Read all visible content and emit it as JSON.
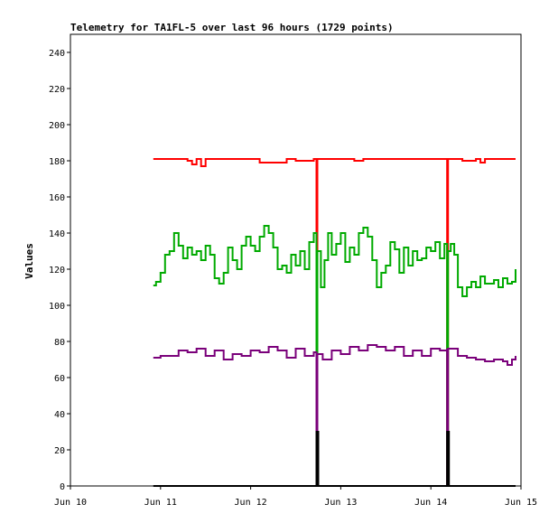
{
  "chart_data": {
    "type": "line",
    "title": "Telemetry for TA1FL-5 over last 96 hours (1729 points)",
    "xlabel": "",
    "ylabel": "Values",
    "x_ticks": [
      "Jun 10",
      "Jun 11",
      "Jun 12",
      "Jun 13",
      "Jun 14",
      "Jun 15"
    ],
    "xlim": [
      0,
      5
    ],
    "ylim": [
      0,
      250
    ],
    "y_ticks": [
      0,
      20,
      40,
      60,
      80,
      100,
      120,
      140,
      160,
      180,
      200,
      220,
      240
    ],
    "grid": false,
    "series": [
      {
        "color": "#ff0000",
        "x": [
          0.92,
          1.2,
          1.3,
          1.35,
          1.4,
          1.45,
          1.5,
          1.55,
          2.05,
          2.1,
          2.4,
          2.5,
          2.7,
          2.73,
          2.73,
          2.74,
          2.74,
          2.9,
          3.1,
          3.15,
          3.25,
          3.5,
          4.18,
          4.18,
          4.19,
          4.19,
          4.3,
          4.35,
          4.5,
          4.55,
          4.6,
          4.94
        ],
        "values": [
          181,
          181,
          180,
          178,
          181,
          177,
          181,
          181,
          181,
          179,
          181,
          180,
          181,
          181,
          0,
          0,
          181,
          181,
          181,
          180,
          181,
          181,
          181,
          0,
          0,
          181,
          181,
          180,
          181,
          179,
          181,
          181
        ]
      },
      {
        "color": "#00aa00",
        "x": [
          0.92,
          0.95,
          1.0,
          1.05,
          1.1,
          1.15,
          1.2,
          1.25,
          1.3,
          1.35,
          1.4,
          1.45,
          1.5,
          1.55,
          1.6,
          1.65,
          1.7,
          1.75,
          1.8,
          1.85,
          1.9,
          1.95,
          2.0,
          2.05,
          2.1,
          2.15,
          2.2,
          2.25,
          2.3,
          2.35,
          2.4,
          2.45,
          2.5,
          2.55,
          2.6,
          2.65,
          2.7,
          2.73,
          2.73,
          2.74,
          2.74,
          2.78,
          2.82,
          2.86,
          2.9,
          2.95,
          3.0,
          3.05,
          3.1,
          3.15,
          3.2,
          3.25,
          3.3,
          3.35,
          3.4,
          3.45,
          3.5,
          3.55,
          3.6,
          3.65,
          3.7,
          3.75,
          3.8,
          3.85,
          3.9,
          3.95,
          4.0,
          4.05,
          4.1,
          4.15,
          4.18,
          4.18,
          4.19,
          4.19,
          4.22,
          4.26,
          4.3,
          4.35,
          4.4,
          4.45,
          4.5,
          4.55,
          4.6,
          4.65,
          4.7,
          4.75,
          4.8,
          4.85,
          4.9,
          4.94
        ],
        "values": [
          111,
          113,
          118,
          128,
          130,
          140,
          133,
          126,
          132,
          128,
          130,
          125,
          133,
          128,
          115,
          112,
          118,
          132,
          125,
          120,
          133,
          138,
          133,
          130,
          138,
          144,
          140,
          132,
          120,
          122,
          118,
          128,
          122,
          130,
          120,
          135,
          140,
          135,
          0,
          0,
          130,
          110,
          125,
          140,
          128,
          134,
          140,
          124,
          132,
          128,
          140,
          143,
          138,
          125,
          110,
          118,
          122,
          135,
          131,
          118,
          132,
          122,
          130,
          125,
          126,
          132,
          130,
          135,
          126,
          134,
          130,
          0,
          0,
          130,
          134,
          128,
          110,
          105,
          110,
          113,
          110,
          116,
          112,
          112,
          114,
          110,
          115,
          112,
          113,
          120
        ]
      },
      {
        "color": "#7a007a",
        "x": [
          0.92,
          1.0,
          1.1,
          1.2,
          1.3,
          1.4,
          1.5,
          1.6,
          1.7,
          1.8,
          1.9,
          2.0,
          2.1,
          2.2,
          2.3,
          2.4,
          2.5,
          2.6,
          2.7,
          2.73,
          2.73,
          2.74,
          2.74,
          2.8,
          2.9,
          3.0,
          3.1,
          3.2,
          3.3,
          3.4,
          3.5,
          3.6,
          3.7,
          3.8,
          3.9,
          4.0,
          4.1,
          4.18,
          4.18,
          4.19,
          4.19,
          4.3,
          4.4,
          4.5,
          4.6,
          4.7,
          4.8,
          4.85,
          4.9,
          4.94
        ],
        "values": [
          71,
          72,
          72,
          75,
          74,
          76,
          72,
          75,
          70,
          73,
          72,
          75,
          74,
          77,
          75,
          71,
          76,
          72,
          74,
          74,
          0,
          0,
          73,
          70,
          75,
          73,
          77,
          75,
          78,
          77,
          75,
          77,
          72,
          75,
          72,
          76,
          75,
          76,
          0,
          0,
          76,
          72,
          71,
          70,
          69,
          70,
          69,
          67,
          70,
          72
        ]
      },
      {
        "color": "#000000",
        "x": [
          0.92,
          2.72,
          2.73,
          2.735,
          2.74,
          2.75,
          4.17,
          4.18,
          4.185,
          4.19,
          4.2,
          4.94
        ],
        "values": [
          0,
          0,
          30,
          0,
          30,
          0,
          0,
          30,
          0,
          30,
          0,
          0
        ]
      }
    ]
  }
}
